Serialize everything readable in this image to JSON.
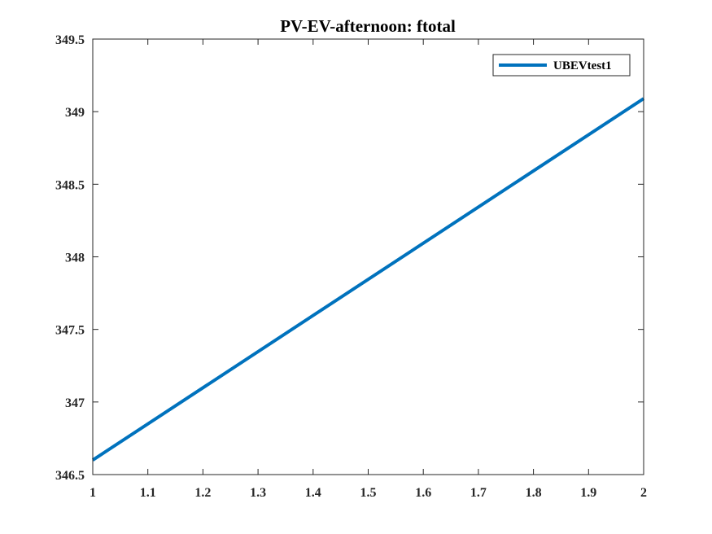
{
  "chart_data": {
    "type": "line",
    "title": "PV-EV-afternoon: ftotal",
    "xlabel": "",
    "ylabel": "",
    "xlim": [
      1,
      2
    ],
    "ylim": [
      346.5,
      349.5
    ],
    "xticks": [
      1,
      1.1,
      1.2,
      1.3,
      1.4,
      1.5,
      1.6,
      1.7,
      1.8,
      1.9,
      2
    ],
    "xtick_labels": [
      "1",
      "1.1",
      "1.2",
      "1.3",
      "1.4",
      "1.5",
      "1.6",
      "1.7",
      "1.8",
      "1.9",
      "2"
    ],
    "yticks": [
      346.5,
      347,
      347.5,
      348,
      348.5,
      349,
      349.5
    ],
    "ytick_labels": [
      "346.5",
      "347",
      "347.5",
      "348",
      "348.5",
      "349",
      "349.5"
    ],
    "grid": false,
    "legend_position": "top-right",
    "series": [
      {
        "name": "UBEVtest1",
        "color": "#0072BD",
        "x": [
          1,
          2
        ],
        "y": [
          346.6,
          349.09
        ]
      }
    ]
  }
}
